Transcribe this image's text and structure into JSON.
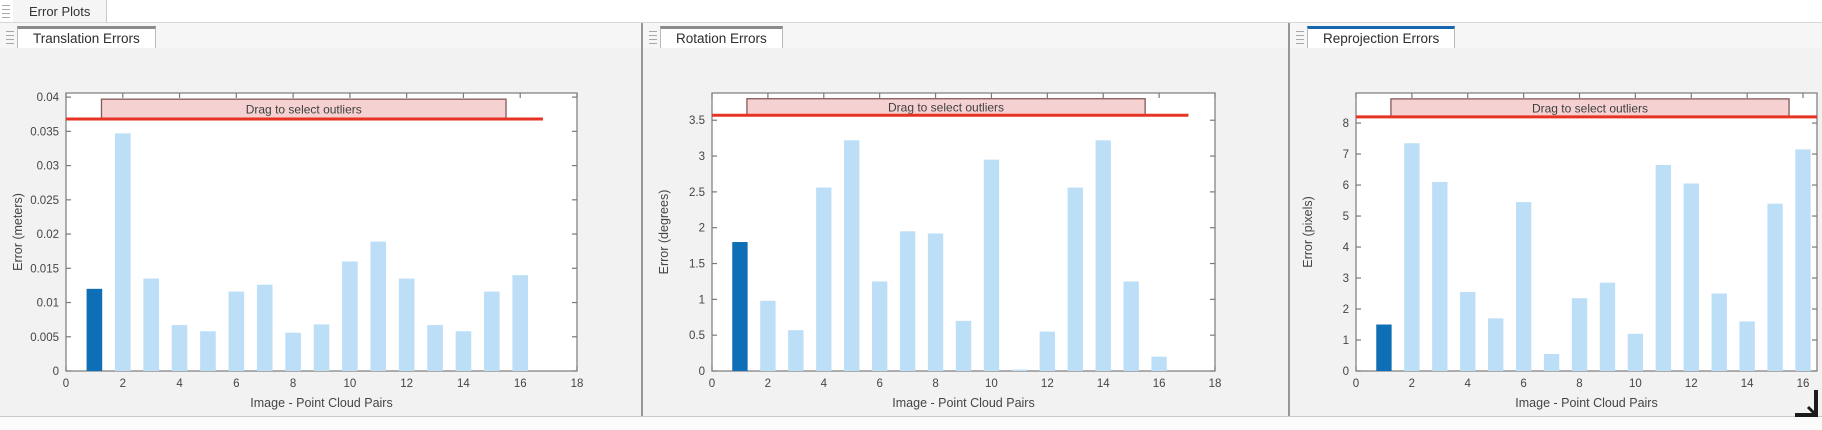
{
  "window": {
    "doc_tab": "Error Plots"
  },
  "panels": [
    {
      "tab": "Translation Errors",
      "active": false
    },
    {
      "tab": "Rotation Errors",
      "active": false
    },
    {
      "tab": "Reprojection Errors",
      "active": true
    }
  ],
  "colors": {
    "bar_light": "#bcdff7",
    "bar_dark": "#0f6fb6",
    "threshold_line": "#e63323",
    "band_fill": "#f5d2d1",
    "band_border": "#84595a",
    "axis": "#7a7a7a",
    "text": "#454545",
    "active_tab_accent": "#1666ad"
  },
  "chart_data": [
    {
      "type": "bar",
      "title": "Translation Errors",
      "xlabel": "Image - Point Cloud Pairs",
      "ylabel": "Error (meters)",
      "x": [
        1,
        2,
        3,
        4,
        5,
        6,
        7,
        8,
        9,
        10,
        11,
        12,
        13,
        14,
        15,
        16
      ],
      "values": [
        0.012,
        0.0347,
        0.0135,
        0.0067,
        0.0058,
        0.0116,
        0.0126,
        0.0056,
        0.0068,
        0.016,
        0.0189,
        0.0135,
        0.0067,
        0.0058,
        0.0116,
        0.014
      ],
      "highlighted_bar": 1,
      "xlim": [
        0,
        18
      ],
      "ylim": [
        0,
        0.0406
      ],
      "xticks": [
        0,
        2,
        4,
        6,
        8,
        10,
        12,
        14,
        16,
        18
      ],
      "xtick_labels": [
        "0",
        "2",
        "4",
        "6",
        "8",
        "10",
        "12",
        "14",
        "16",
        "18"
      ],
      "yticks": [
        0,
        0.005,
        0.01,
        0.015,
        0.02,
        0.025,
        0.03,
        0.035,
        0.04
      ],
      "ytick_labels": [
        "0",
        "0.005",
        "0.01",
        "0.015",
        "0.02",
        "0.025",
        "0.03",
        "0.035",
        "0.04"
      ],
      "threshold": 0.0368,
      "threshold_x_end": 16.8,
      "band": {
        "label": "Drag to select outliers",
        "x0": 1.25,
        "x1": 15.5,
        "top": 0.0397
      },
      "grid": false,
      "legend": null
    },
    {
      "type": "bar",
      "title": "Rotation Errors",
      "xlabel": "Image - Point Cloud Pairs",
      "ylabel": "Error (degrees)",
      "x": [
        1,
        2,
        3,
        4,
        5,
        6,
        7,
        8,
        9,
        10,
        11,
        12,
        13,
        14,
        15,
        16
      ],
      "values": [
        1.8,
        0.98,
        0.57,
        2.56,
        3.22,
        1.25,
        1.95,
        1.92,
        0.7,
        2.95,
        0.02,
        0.55,
        2.56,
        3.22,
        1.25,
        0.2
      ],
      "highlighted_bar": 1,
      "xlim": [
        0,
        18
      ],
      "ylim": [
        0,
        3.88
      ],
      "xticks": [
        0,
        2,
        4,
        6,
        8,
        10,
        12,
        14,
        16,
        18
      ],
      "xtick_labels": [
        "0",
        "2",
        "4",
        "6",
        "8",
        "10",
        "12",
        "14",
        "16",
        "18"
      ],
      "yticks": [
        0,
        0.5,
        1,
        1.5,
        2,
        2.5,
        3,
        3.5
      ],
      "ytick_labels": [
        "0",
        "0.5",
        "1",
        "1.5",
        "2",
        "2.5",
        "3",
        "3.5"
      ],
      "threshold": 3.57,
      "threshold_x_end": 17.05,
      "band": {
        "label": "Drag to select outliers",
        "x0": 1.25,
        "x1": 15.5,
        "top": 3.8
      },
      "grid": false,
      "legend": null
    },
    {
      "type": "bar",
      "title": "Reprojection Errors",
      "xlabel": "Image - Point Cloud Pairs",
      "ylabel": "Error (pixels)",
      "x": [
        1,
        2,
        3,
        4,
        5,
        6,
        7,
        8,
        9,
        10,
        11,
        12,
        13,
        14,
        15,
        16
      ],
      "values": [
        1.5,
        7.35,
        6.1,
        2.55,
        1.7,
        5.45,
        0.55,
        2.35,
        2.85,
        1.2,
        6.65,
        6.05,
        2.5,
        1.6,
        5.4,
        7.15
      ],
      "highlighted_bar": 1,
      "xlim": [
        0,
        16.5
      ],
      "ylim": [
        0,
        8.97
      ],
      "xticks": [
        0,
        2,
        4,
        6,
        8,
        10,
        12,
        14,
        16
      ],
      "xtick_labels": [
        "0",
        "2",
        "4",
        "6",
        "8",
        "10",
        "12",
        "14",
        "16"
      ],
      "yticks": [
        0,
        1,
        2,
        3,
        4,
        5,
        6,
        7,
        8
      ],
      "ytick_labels": [
        "0",
        "1",
        "2",
        "3",
        "4",
        "5",
        "6",
        "7",
        "8"
      ],
      "threshold": 8.2,
      "threshold_x_end": 16.5,
      "band": {
        "label": "Drag to select outliers",
        "x0": 1.25,
        "x1": 15.5,
        "top": 8.78
      },
      "grid": false,
      "legend": null
    }
  ]
}
